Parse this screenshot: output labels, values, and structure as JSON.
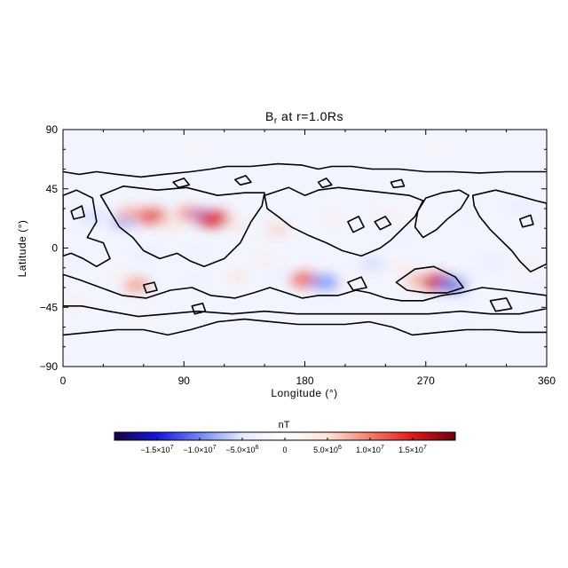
{
  "chart_data": {
    "type": "heatmap",
    "title": "B",
    "title_subscript": "r",
    "title_suffix": " at r=1.0Rs",
    "xlabel": "Longitude (°)",
    "ylabel": "Latitude (°)",
    "xlim": [
      0,
      360
    ],
    "ylim": [
      -90,
      90
    ],
    "xticks": [
      0,
      90,
      180,
      270,
      360
    ],
    "xtick_labels": [
      "0",
      "90",
      "180",
      "270",
      "360"
    ],
    "yticks": [
      90,
      45,
      0,
      -45,
      -90
    ],
    "ytick_labels": [
      "90",
      "45",
      "0",
      "−45",
      "−90"
    ],
    "colorscale": [
      "#1a0040",
      "#1515e0",
      "#6f86f5",
      "#e6ebff",
      "#ffffff",
      "#ffe4dc",
      "#f27e6a",
      "#e01818",
      "#6b0010"
    ],
    "colorbar": {
      "label": "nT",
      "range": [
        -20000000.0,
        20000000.0
      ],
      "ticks": [
        -15000000.0,
        -10000000.0,
        -5000000.0,
        0,
        5000000.0,
        10000000.0,
        15000000.0
      ],
      "tick_labels": [
        {
          "mantissa": "−1.5×10",
          "exp": "7"
        },
        {
          "mantissa": "−1.0×10",
          "exp": "7"
        },
        {
          "mantissa": "−5.0×10",
          "exp": "6"
        },
        {
          "mantissa": "0",
          "exp": ""
        },
        {
          "mantissa": "5.0×10",
          "exp": "6"
        },
        {
          "mantissa": "1.0×10",
          "exp": "7"
        },
        {
          "mantissa": "1.5×10",
          "exp": "7"
        }
      ]
    },
    "field_features": [
      {
        "lon": 22,
        "lat": 24,
        "value": -6000000.0
      },
      {
        "lon": 45,
        "lat": 20,
        "value": -8000000.0
      },
      {
        "lon": 50,
        "lat": 26,
        "value": 8000000.0
      },
      {
        "lon": 66,
        "lat": 24,
        "value": 13000000.0
      },
      {
        "lon": 80,
        "lat": 18,
        "value": 5000000.0
      },
      {
        "lon": 95,
        "lat": 26,
        "value": 10000000.0
      },
      {
        "lon": 106,
        "lat": 24,
        "value": -10000000.0
      },
      {
        "lon": 112,
        "lat": 22,
        "value": 15000000.0
      },
      {
        "lon": 130,
        "lat": 18,
        "value": 5000000.0
      },
      {
        "lon": 160,
        "lat": 14,
        "value": 6000000.0
      },
      {
        "lon": 200,
        "lat": 22,
        "value": 4000000.0
      },
      {
        "lon": 240,
        "lat": 25,
        "value": 4000000.0
      },
      {
        "lon": 260,
        "lat": 22,
        "value": 3000000.0
      },
      {
        "lon": 300,
        "lat": 28,
        "value": -4000000.0
      },
      {
        "lon": 340,
        "lat": 32,
        "value": -5000000.0
      },
      {
        "lon": 355,
        "lat": 24,
        "value": -4000000.0
      },
      {
        "lon": 250,
        "lat": 10,
        "value": -4000000.0
      },
      {
        "lon": 60,
        "lat": -5,
        "value": -5000000.0
      },
      {
        "lon": 100,
        "lat": -2,
        "value": -4000000.0
      },
      {
        "lon": 150,
        "lat": -8,
        "value": 4000000.0
      },
      {
        "lon": 5,
        "lat": -10,
        "value": -4000000.0
      },
      {
        "lon": 10,
        "lat": -42,
        "value": 4000000.0
      },
      {
        "lon": 40,
        "lat": -20,
        "value": 3000000.0
      },
      {
        "lon": 55,
        "lat": -28,
        "value": 9000000.0
      },
      {
        "lon": 100,
        "lat": -25,
        "value": -4000000.0
      },
      {
        "lon": 130,
        "lat": -22,
        "value": 5000000.0
      },
      {
        "lon": 160,
        "lat": -18,
        "value": -4000000.0
      },
      {
        "lon": 180,
        "lat": -24,
        "value": 12000000.0
      },
      {
        "lon": 195,
        "lat": -26,
        "value": -10000000.0
      },
      {
        "lon": 215,
        "lat": -25,
        "value": 3000000.0
      },
      {
        "lon": 230,
        "lat": -12,
        "value": -6000000.0
      },
      {
        "lon": 250,
        "lat": -15,
        "value": 4000000.0
      },
      {
        "lon": 265,
        "lat": -25,
        "value": 8000000.0
      },
      {
        "lon": 280,
        "lat": -26,
        "value": 16000000.0
      },
      {
        "lon": 290,
        "lat": -28,
        "value": -11000000.0
      },
      {
        "lon": 300,
        "lat": -20,
        "value": -4000000.0
      },
      {
        "lon": 320,
        "lat": -10,
        "value": -5000000.0
      },
      {
        "lon": 345,
        "lat": -15,
        "value": 4000000.0
      },
      {
        "lon": 350,
        "lat": -30,
        "value": -4000000.0
      },
      {
        "lon": 150,
        "lat": -50,
        "value": -3000000.0
      },
      {
        "lon": 60,
        "lat": -50,
        "value": 3000000.0
      },
      {
        "lon": 300,
        "lat": -60,
        "value": -3000000.0
      },
      {
        "lon": 100,
        "lat": 75,
        "value": 2000000.0
      },
      {
        "lon": 280,
        "lat": 76,
        "value": 2000000.0
      }
    ],
    "zero_contours": [
      {
        "name": "north-boundary",
        "closed": false,
        "points": [
          [
            0,
            58
          ],
          [
            12,
            56
          ],
          [
            25,
            58
          ],
          [
            40,
            56
          ],
          [
            58,
            54
          ],
          [
            75,
            56
          ],
          [
            95,
            58
          ],
          [
            110,
            60
          ],
          [
            122,
            62
          ],
          [
            140,
            62
          ],
          [
            160,
            64
          ],
          [
            178,
            63
          ],
          [
            190,
            60
          ],
          [
            200,
            62
          ],
          [
            215,
            62
          ],
          [
            230,
            60
          ],
          [
            250,
            60
          ],
          [
            270,
            58
          ],
          [
            290,
            58
          ],
          [
            310,
            57
          ],
          [
            330,
            58
          ],
          [
            350,
            58
          ],
          [
            360,
            58
          ]
        ]
      },
      {
        "name": "south-boundary",
        "closed": false,
        "points": [
          [
            0,
            -66
          ],
          [
            20,
            -64
          ],
          [
            40,
            -62
          ],
          [
            60,
            -62
          ],
          [
            78,
            -66
          ],
          [
            95,
            -62
          ],
          [
            115,
            -56
          ],
          [
            135,
            -54
          ],
          [
            155,
            -56
          ],
          [
            175,
            -58
          ],
          [
            190,
            -58
          ],
          [
            210,
            -58
          ],
          [
            228,
            -56
          ],
          [
            245,
            -60
          ],
          [
            260,
            -66
          ],
          [
            280,
            -64
          ],
          [
            300,
            -62
          ],
          [
            320,
            -62
          ],
          [
            340,
            -64
          ],
          [
            360,
            -64
          ]
        ]
      },
      {
        "name": "region-a",
        "closed": true,
        "points": [
          [
            0,
            40
          ],
          [
            10,
            44
          ],
          [
            22,
            38
          ],
          [
            25,
            20
          ],
          [
            18,
            8
          ],
          [
            30,
            4
          ],
          [
            35,
            -8
          ],
          [
            25,
            -14
          ],
          [
            15,
            -8
          ],
          [
            6,
            -4
          ],
          [
            0,
            -6
          ]
        ]
      },
      {
        "name": "region-b",
        "closed": true,
        "points": [
          [
            28,
            40
          ],
          [
            45,
            47
          ],
          [
            70,
            44
          ],
          [
            92,
            46
          ],
          [
            115,
            40
          ],
          [
            135,
            42
          ],
          [
            150,
            42
          ],
          [
            148,
            32
          ],
          [
            140,
            20
          ],
          [
            132,
            4
          ],
          [
            120,
            -8
          ],
          [
            105,
            -14
          ],
          [
            95,
            -10
          ],
          [
            85,
            -4
          ],
          [
            72,
            -8
          ],
          [
            60,
            -2
          ],
          [
            52,
            8
          ],
          [
            42,
            16
          ],
          [
            36,
            26
          ]
        ]
      },
      {
        "name": "region-c",
        "closed": true,
        "points": [
          [
            150,
            40
          ],
          [
            168,
            46
          ],
          [
            180,
            40
          ],
          [
            190,
            44
          ],
          [
            205,
            46
          ],
          [
            222,
            44
          ],
          [
            240,
            42
          ],
          [
            258,
            40
          ],
          [
            268,
            36
          ],
          [
            262,
            24
          ],
          [
            252,
            14
          ],
          [
            244,
            6
          ],
          [
            236,
            0
          ],
          [
            222,
            -6
          ],
          [
            208,
            -2
          ],
          [
            196,
            4
          ],
          [
            182,
            10
          ],
          [
            170,
            16
          ],
          [
            160,
            24
          ],
          [
            152,
            30
          ]
        ]
      },
      {
        "name": "region-d",
        "closed": true,
        "points": [
          [
            270,
            38
          ],
          [
            282,
            42
          ],
          [
            295,
            44
          ],
          [
            302,
            40
          ],
          [
            296,
            30
          ],
          [
            286,
            22
          ],
          [
            278,
            14
          ],
          [
            268,
            8
          ],
          [
            262,
            16
          ],
          [
            264,
            28
          ]
        ]
      },
      {
        "name": "region-e",
        "closed": true,
        "points": [
          [
            305,
            40
          ],
          [
            322,
            44
          ],
          [
            338,
            40
          ],
          [
            352,
            36
          ],
          [
            360,
            34
          ],
          [
            360,
            -12
          ],
          [
            348,
            -18
          ],
          [
            340,
            -10
          ],
          [
            334,
            -2
          ],
          [
            326,
            6
          ],
          [
            318,
            14
          ],
          [
            310,
            24
          ],
          [
            306,
            32
          ]
        ]
      },
      {
        "name": "region-f",
        "closed": true,
        "points": [
          [
            0,
            -20
          ],
          [
            12,
            -24
          ],
          [
            28,
            -30
          ],
          [
            44,
            -36
          ],
          [
            62,
            -38
          ],
          [
            80,
            -32
          ],
          [
            96,
            -30
          ],
          [
            110,
            -36
          ],
          [
            128,
            -38
          ],
          [
            142,
            -34
          ],
          [
            154,
            -30
          ],
          [
            166,
            -34
          ],
          [
            178,
            -38
          ],
          [
            190,
            -36
          ],
          [
            205,
            -36
          ],
          [
            218,
            -32
          ],
          [
            228,
            -34
          ],
          [
            240,
            -38
          ],
          [
            252,
            -40
          ],
          [
            268,
            -40
          ],
          [
            282,
            -36
          ],
          [
            296,
            -34
          ],
          [
            312,
            -30
          ],
          [
            330,
            -32
          ],
          [
            345,
            -34
          ],
          [
            360,
            -36
          ],
          [
            360,
            -46
          ],
          [
            340,
            -50
          ],
          [
            318,
            -50
          ],
          [
            296,
            -48
          ],
          [
            272,
            -50
          ],
          [
            246,
            -50
          ],
          [
            222,
            -50
          ],
          [
            198,
            -50
          ],
          [
            174,
            -50
          ],
          [
            150,
            -48
          ],
          [
            126,
            -50
          ],
          [
            100,
            -48
          ],
          [
            78,
            -50
          ],
          [
            56,
            -52
          ],
          [
            34,
            -48
          ],
          [
            14,
            -44
          ],
          [
            0,
            -44
          ]
        ]
      },
      {
        "name": "region-g",
        "closed": true,
        "points": [
          [
            248,
            -26
          ],
          [
            262,
            -16
          ],
          [
            276,
            -14
          ],
          [
            292,
            -22
          ],
          [
            298,
            -30
          ],
          [
            286,
            -34
          ],
          [
            270,
            -34
          ],
          [
            256,
            -32
          ]
        ]
      },
      {
        "name": "island-1",
        "closed": true,
        "points": [
          [
            60,
            -28
          ],
          [
            68,
            -26
          ],
          [
            70,
            -32
          ],
          [
            62,
            -34
          ]
        ]
      },
      {
        "name": "island-2",
        "closed": true,
        "points": [
          [
            212,
            -26
          ],
          [
            222,
            -22
          ],
          [
            226,
            -30
          ],
          [
            216,
            -32
          ]
        ]
      },
      {
        "name": "island-3",
        "closed": true,
        "points": [
          [
            318,
            -40
          ],
          [
            330,
            -38
          ],
          [
            334,
            -46
          ],
          [
            322,
            -48
          ]
        ]
      },
      {
        "name": "island-4",
        "closed": true,
        "points": [
          [
            82,
            50
          ],
          [
            90,
            53
          ],
          [
            94,
            48
          ],
          [
            86,
            46
          ]
        ]
      },
      {
        "name": "island-5",
        "closed": true,
        "points": [
          [
            128,
            52
          ],
          [
            136,
            55
          ],
          [
            140,
            50
          ],
          [
            132,
            48
          ]
        ]
      },
      {
        "name": "island-6",
        "closed": true,
        "points": [
          [
            190,
            50
          ],
          [
            196,
            53
          ],
          [
            200,
            48
          ],
          [
            193,
            46
          ]
        ]
      },
      {
        "name": "island-7",
        "closed": true,
        "points": [
          [
            244,
            50
          ],
          [
            252,
            52
          ],
          [
            254,
            47
          ],
          [
            246,
            46
          ]
        ]
      },
      {
        "name": "island-8",
        "closed": true,
        "points": [
          [
            340,
            22
          ],
          [
            348,
            25
          ],
          [
            350,
            18
          ],
          [
            342,
            16
          ]
        ]
      },
      {
        "name": "island-9",
        "closed": true,
        "points": [
          [
            212,
            20
          ],
          [
            220,
            24
          ],
          [
            224,
            16
          ],
          [
            216,
            12
          ]
        ]
      },
      {
        "name": "island-10",
        "closed": true,
        "points": [
          [
            96,
            -44
          ],
          [
            104,
            -42
          ],
          [
            106,
            -48
          ],
          [
            98,
            -50
          ]
        ]
      },
      {
        "name": "island-11",
        "closed": true,
        "points": [
          [
            232,
            20
          ],
          [
            240,
            24
          ],
          [
            244,
            18
          ],
          [
            236,
            14
          ]
        ]
      },
      {
        "name": "island-12",
        "closed": true,
        "points": [
          [
            6,
            28
          ],
          [
            14,
            32
          ],
          [
            16,
            24
          ],
          [
            8,
            22
          ]
        ]
      }
    ]
  }
}
